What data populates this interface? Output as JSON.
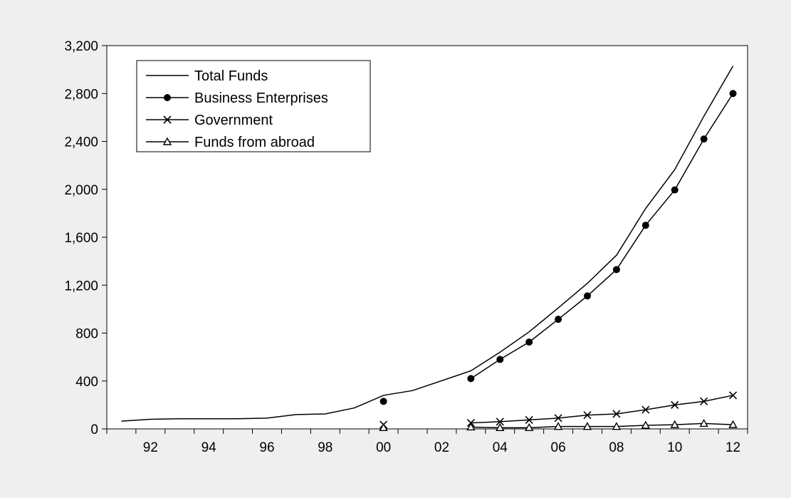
{
  "chart_data": {
    "type": "line",
    "title": "",
    "xlabel": "",
    "ylabel": "",
    "x_tick_labels": [
      "92",
      "94",
      "96",
      "98",
      "00",
      "02",
      "04",
      "06",
      "08",
      "10",
      "12"
    ],
    "x_tick_years": [
      1992,
      1994,
      1996,
      1998,
      2000,
      2002,
      2004,
      2006,
      2008,
      2010,
      2012
    ],
    "xlim": [
      1990.5,
      2012.5
    ],
    "ylim": [
      0,
      3200
    ],
    "y_ticks": [
      0,
      400,
      800,
      1200,
      1600,
      2000,
      2400,
      2800,
      3200
    ],
    "y_tick_labels": [
      "0",
      "400",
      "800",
      "1,200",
      "1,600",
      "2,000",
      "2,400",
      "2,800",
      "3,200"
    ],
    "legend_position": "top-left",
    "grid": false,
    "colors": {
      "background": "#efefef",
      "plot_area": "#ffffff",
      "line": "#000000"
    },
    "series": [
      {
        "name": "Total Funds",
        "marker": "none",
        "x": [
          1991,
          1992,
          1993,
          1994,
          1995,
          1996,
          1997,
          1998,
          1999,
          2000,
          2001,
          2003,
          2004,
          2005,
          2006,
          2007,
          2008,
          2009,
          2010,
          2011,
          2012
        ],
        "values": [
          65,
          80,
          85,
          85,
          85,
          90,
          120,
          125,
          175,
          280,
          320,
          485,
          640,
          810,
          1010,
          1215,
          1450,
          1840,
          2165,
          2610,
          3030
        ]
      },
      {
        "name": "Business Enterprises",
        "marker": "circle",
        "segments": [
          [
            2000
          ],
          [
            2003,
            2004,
            2005,
            2006,
            2007,
            2008,
            2009,
            2010,
            2011,
            2012
          ]
        ],
        "x": [
          2000,
          2003,
          2004,
          2005,
          2006,
          2007,
          2008,
          2009,
          2010,
          2011,
          2012
        ],
        "values": [
          230,
          420,
          580,
          725,
          915,
          1110,
          1330,
          1700,
          1995,
          2420,
          2800
        ]
      },
      {
        "name": "Government",
        "marker": "cross",
        "segments": [
          [
            2000
          ],
          [
            2003,
            2004,
            2005,
            2006,
            2007,
            2008,
            2009,
            2010,
            2011,
            2012
          ]
        ],
        "x": [
          2000,
          2003,
          2004,
          2005,
          2006,
          2007,
          2008,
          2009,
          2010,
          2011,
          2012
        ],
        "values": [
          35,
          50,
          60,
          75,
          90,
          115,
          125,
          160,
          200,
          230,
          280
        ]
      },
      {
        "name": "Funds from abroad",
        "marker": "triangle",
        "segments": [
          [
            2000
          ],
          [
            2003,
            2004,
            2005,
            2006,
            2007,
            2008,
            2009,
            2010,
            2011,
            2012
          ]
        ],
        "x": [
          2000,
          2003,
          2004,
          2005,
          2006,
          2007,
          2008,
          2009,
          2010,
          2011,
          2012
        ],
        "values": [
          10,
          15,
          10,
          10,
          20,
          20,
          20,
          30,
          35,
          45,
          35
        ]
      }
    ]
  }
}
